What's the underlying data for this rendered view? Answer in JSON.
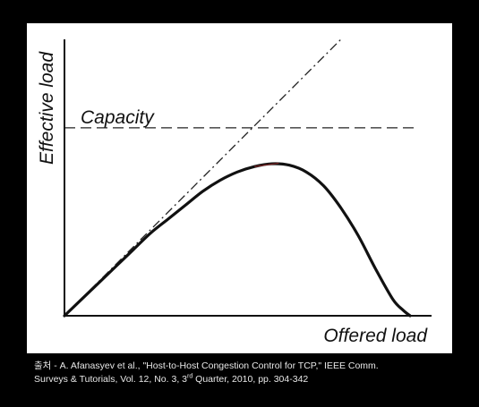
{
  "chart_data": {
    "type": "line",
    "title": "",
    "xlabel": "Offered load",
    "ylabel": "Effective load",
    "xlim": [
      0,
      1
    ],
    "ylim": [
      0,
      1
    ],
    "grid": false,
    "legend": "none",
    "ticks": "none",
    "annotations": [
      {
        "text": "Capacity",
        "attached_to": "capacity-line"
      }
    ],
    "series": [
      {
        "role": "ideal-throughput",
        "style": "dash-dot",
        "color": "#222222",
        "x": [
          0,
          0.8
        ],
        "y": [
          0,
          1
        ]
      },
      {
        "role": "capacity-line",
        "style": "dashed",
        "color": "#222222",
        "x": [
          0,
          1
        ],
        "y": [
          0.68,
          0.68
        ]
      },
      {
        "role": "effective-load",
        "style": "solid",
        "color": "#111111",
        "x": [
          0,
          0.05,
          0.1,
          0.15,
          0.2,
          0.25,
          0.3,
          0.35,
          0.4,
          0.45,
          0.5,
          0.55,
          0.6,
          0.65,
          0.7,
          0.75,
          0.8,
          0.85,
          0.9,
          0.95,
          0.98,
          1.0
        ],
        "y": [
          0,
          0.06,
          0.12,
          0.18,
          0.24,
          0.3,
          0.35,
          0.4,
          0.45,
          0.49,
          0.52,
          0.54,
          0.55,
          0.545,
          0.52,
          0.47,
          0.39,
          0.29,
          0.17,
          0.06,
          0.02,
          0
        ]
      }
    ],
    "highlight_color": "#d43030"
  },
  "caption": {
    "prefix": "출처 - A. Afanasyev et al., \"Host-to-Host Congestion Control for TCP,\" IEEE Comm.",
    "line2_before": "Surveys & Tutorials, Vol. 12, No. 3, 3",
    "superscript": "rd",
    "line2_after": " Quarter, 2010, pp. 304-342"
  }
}
